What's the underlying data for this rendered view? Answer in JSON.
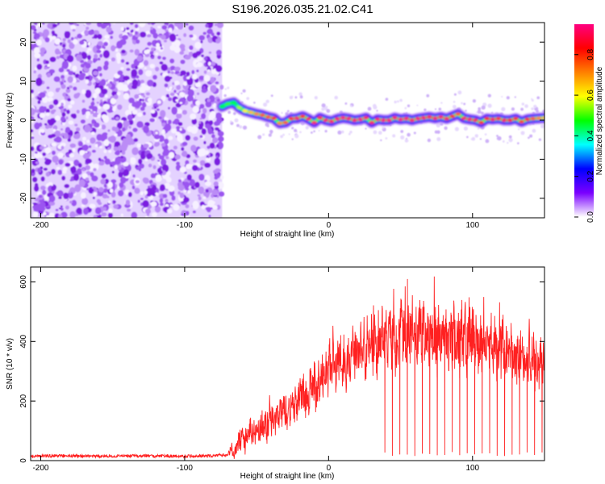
{
  "title": "S196.2026.035.21.02.C41",
  "chart_data": [
    {
      "type": "heatmap",
      "name": "spectrogram",
      "xlabel": "Height of straight line (km)",
      "ylabel": "Frequency (Hz)",
      "xlim": [
        -207,
        150
      ],
      "ylim": [
        -25,
        25
      ],
      "xticks": [
        -200,
        -100,
        0,
        100
      ],
      "yticks": [
        -20,
        -10,
        0,
        10,
        20
      ],
      "colorbar": {
        "label": "Normalized spectral amplitude",
        "range": [
          0,
          0.95
        ],
        "ticks": [
          0.0,
          0.2,
          0.4,
          0.6,
          0.8
        ],
        "tick_labels": [
          "0.0",
          "0.2",
          "0.4",
          "0.6",
          "0.8"
        ],
        "colors": [
          "#ffffff",
          "#7a00ff",
          "#0000ff",
          "#00ffff",
          "#00ff00",
          "#ffff00",
          "#ff8000",
          "#ff0000",
          "#ff0080"
        ]
      },
      "noise_region_x": [
        -207,
        -74
      ],
      "ridge": {
        "x": [
          -74,
          -70,
          -66,
          -62,
          -58,
          -54,
          -50,
          -46,
          -42,
          -38,
          -34,
          -30,
          -26,
          -22,
          -18,
          -14,
          -10,
          -6,
          -2,
          2,
          6,
          10,
          14,
          18,
          22,
          26,
          30,
          34,
          38,
          42,
          46,
          50,
          54,
          58,
          62,
          66,
          70,
          74,
          78,
          82,
          86,
          90,
          94,
          98,
          102,
          106,
          110,
          114,
          118,
          122,
          126,
          130,
          134,
          138,
          142,
          146,
          150
        ],
        "freq": [
          3.5,
          4.2,
          4.5,
          3.2,
          2.4,
          2.0,
          1.6,
          1.3,
          0.8,
          0.5,
          -0.8,
          -0.6,
          0.4,
          0.5,
          1.0,
          0.3,
          -0.6,
          0.6,
          0.0,
          -0.3,
          0.3,
          0.6,
          0.4,
          0.0,
          0.2,
          0.6,
          -0.6,
          0.2,
          0.0,
          0.0,
          0.6,
          0.2,
          0.4,
          0.0,
          0.4,
          0.6,
          0.8,
          0.5,
          0.8,
          0.4,
          1.0,
          1.6,
          0.5,
          0.2,
          0.0,
          -0.6,
          0.4,
          0.2,
          0.4,
          0.0,
          0.0,
          0.4,
          -0.4,
          0.2,
          0.4,
          0.5,
          0.6
        ],
        "amp": [
          0.45,
          0.5,
          0.45,
          0.55,
          0.6,
          0.65,
          0.7,
          0.75,
          0.75,
          0.8,
          0.7,
          0.75,
          0.8,
          0.85,
          0.8,
          0.85,
          0.9,
          0.85,
          0.9,
          0.88,
          0.9,
          0.92,
          0.88,
          0.9,
          0.92,
          0.9,
          0.88,
          0.9,
          0.92,
          0.9,
          0.9,
          0.92,
          0.9,
          0.88,
          0.9,
          0.88,
          0.85,
          0.88,
          0.9,
          0.85,
          0.8,
          0.75,
          0.85,
          0.88,
          0.85,
          0.8,
          0.82,
          0.85,
          0.8,
          0.85,
          0.82,
          0.8,
          0.78,
          0.8,
          0.75,
          0.7,
          0.65
        ]
      }
    },
    {
      "type": "line",
      "name": "snr",
      "xlabel": "Height of straight line (km)",
      "ylabel": "SNR (10 * v/v)",
      "xlim": [
        -207,
        150
      ],
      "ylim": [
        0,
        650
      ],
      "xticks": [
        -200,
        -100,
        0,
        100
      ],
      "yticks": [
        0,
        200,
        400,
        600
      ],
      "color": "#ff2020",
      "envelope": {
        "x": [
          -207,
          -190,
          -170,
          -150,
          -130,
          -110,
          -90,
          -70,
          -66,
          -60,
          -50,
          -40,
          -30,
          -20,
          -10,
          0,
          10,
          20,
          30,
          40,
          50,
          60,
          70,
          80,
          90,
          97,
          100,
          110,
          120,
          130,
          140,
          150
        ],
        "mean": [
          15,
          16,
          15,
          15,
          16,
          15,
          15,
          18,
          40,
          70,
          100,
          130,
          160,
          200,
          250,
          300,
          340,
          370,
          390,
          410,
          420,
          425,
          420,
          410,
          400,
          410,
          395,
          380,
          370,
          350,
          340,
          320
        ],
        "amp": [
          10,
          10,
          10,
          10,
          10,
          10,
          10,
          12,
          60,
          80,
          90,
          100,
          110,
          120,
          140,
          150,
          160,
          170,
          180,
          190,
          190,
          190,
          190,
          190,
          200,
          230,
          190,
          180,
          170,
          160,
          150,
          140
        ]
      },
      "dropouts_x_range": [
        39,
        150
      ],
      "dropouts_spacing": 5.2
    }
  ]
}
